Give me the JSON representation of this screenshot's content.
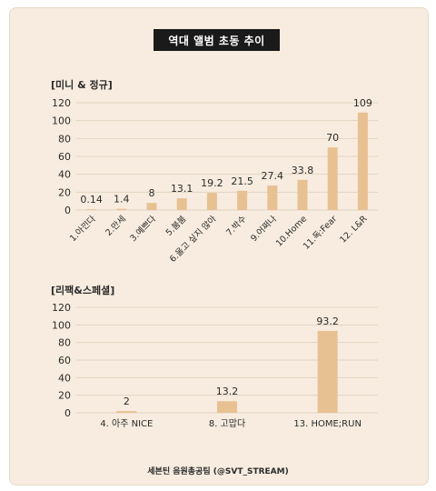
{
  "header": {
    "title": "역대 앨범 초동 추이"
  },
  "footer": {
    "credit": "세븐틴 음원총공팀 (@SVT_STREAM)"
  },
  "colors": {
    "bar": "#e8c192",
    "grid": "#e2d5c3",
    "background": "#f7ecdf",
    "title_bg": "#1a1a1a"
  },
  "chart_data": [
    {
      "type": "bar",
      "title": "[미니 & 정규]",
      "categories": [
        "1.아낀다",
        "2.만세",
        "3.예쁘다",
        "5.붐붐",
        "6.울고 싶지 않아",
        "7.박수",
        "9.어쩌나",
        "10.Home",
        "11.독:Fear",
        "12. L&R"
      ],
      "values": [
        0.14,
        1.4,
        8,
        13.1,
        19.2,
        21.5,
        27.4,
        33.8,
        70,
        109
      ],
      "value_labels": [
        "0.14",
        "1.4",
        "8",
        "13.1",
        "19.2",
        "21.5",
        "27.4",
        "33.8",
        "70",
        "109"
      ],
      "yticks": [
        "0",
        "20",
        "40",
        "60",
        "80",
        "100",
        "120"
      ],
      "ylim": [
        0,
        120
      ],
      "grid": true
    },
    {
      "type": "bar",
      "title": "[리팩&스페셜]",
      "categories": [
        "4. 아주 NICE",
        "8. 고맙다",
        "13. HOME;RUN"
      ],
      "values": [
        2,
        13.2,
        93.2
      ],
      "value_labels": [
        "2",
        "13.2",
        "93.2"
      ],
      "yticks": [
        "0",
        "20",
        "40",
        "60",
        "80",
        "100",
        "120"
      ],
      "ylim": [
        0,
        120
      ],
      "grid": true
    }
  ]
}
